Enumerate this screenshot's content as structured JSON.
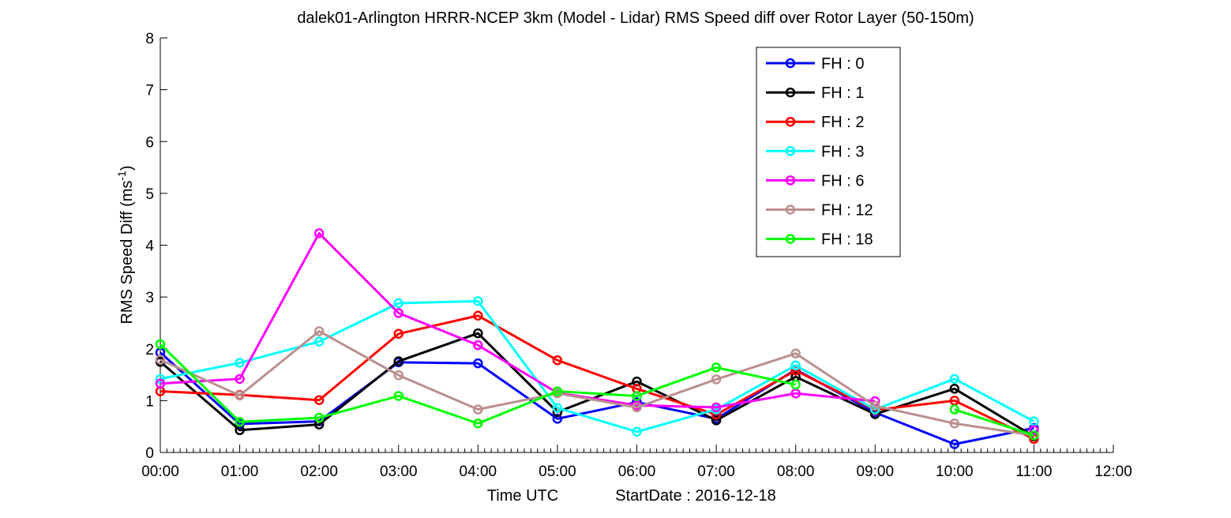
{
  "chart_data": {
    "type": "line",
    "title": "dalek01-Arlington HRRR-NCEP 3km (Model - Lidar) RMS Speed diff over Rotor Layer (50-150m)",
    "xlabel_time": "Time UTC",
    "xlabel_start": "StartDate : 2016-12-18",
    "ylabel_main": "RMS Speed Diff (ms",
    "ylabel_sup": "-1",
    "ylabel_close": ")",
    "x_tick_labels": [
      "00:00",
      "01:00",
      "02:00",
      "03:00",
      "04:00",
      "05:00",
      "06:00",
      "07:00",
      "08:00",
      "09:00",
      "10:00",
      "11:00",
      "12:00"
    ],
    "y_tick_labels": [
      "0",
      "1",
      "2",
      "3",
      "4",
      "5",
      "6",
      "7",
      "8"
    ],
    "xlim": [
      0,
      12
    ],
    "ylim": [
      0,
      8
    ],
    "grid": false,
    "legend_position": "top-right",
    "x": [
      0,
      1,
      2,
      3,
      4,
      5,
      6,
      7,
      8,
      9,
      10,
      11
    ],
    "series": [
      {
        "name": "FH : 0",
        "color": "#0000ff",
        "values": [
          1.93,
          0.55,
          0.6,
          1.74,
          1.72,
          0.65,
          0.97,
          0.65,
          1.6,
          0.77,
          0.16,
          0.47
        ]
      },
      {
        "name": "FH : 1",
        "color": "#000000",
        "values": [
          1.75,
          0.43,
          0.54,
          1.76,
          2.3,
          0.78,
          1.37,
          0.62,
          1.46,
          0.74,
          1.23,
          0.31
        ]
      },
      {
        "name": "FH : 2",
        "color": "#ff0000",
        "values": [
          1.18,
          1.11,
          1.01,
          2.29,
          2.64,
          1.78,
          1.23,
          0.73,
          1.58,
          0.82,
          1.0,
          0.26
        ]
      },
      {
        "name": "FH : 3",
        "color": "#00ffff",
        "values": [
          1.42,
          1.73,
          2.14,
          2.88,
          2.92,
          0.86,
          0.4,
          0.83,
          1.68,
          0.83,
          1.42,
          0.6
        ]
      },
      {
        "name": "FH : 6",
        "color": "#ff00ff",
        "values": [
          1.33,
          1.42,
          4.23,
          2.69,
          2.07,
          1.15,
          0.91,
          0.87,
          1.14,
          0.99,
          null,
          0.43
        ]
      },
      {
        "name": "FH : 12",
        "color": "#bc8f8f",
        "values": [
          1.79,
          1.1,
          2.34,
          1.49,
          0.83,
          1.14,
          0.87,
          1.41,
          1.91,
          0.9,
          0.56,
          0.33
        ]
      },
      {
        "name": "FH : 18",
        "color": "#00ff00",
        "values": [
          2.09,
          0.59,
          0.67,
          1.09,
          0.56,
          1.18,
          1.09,
          1.64,
          1.31,
          null,
          0.83,
          0.33
        ]
      }
    ]
  }
}
